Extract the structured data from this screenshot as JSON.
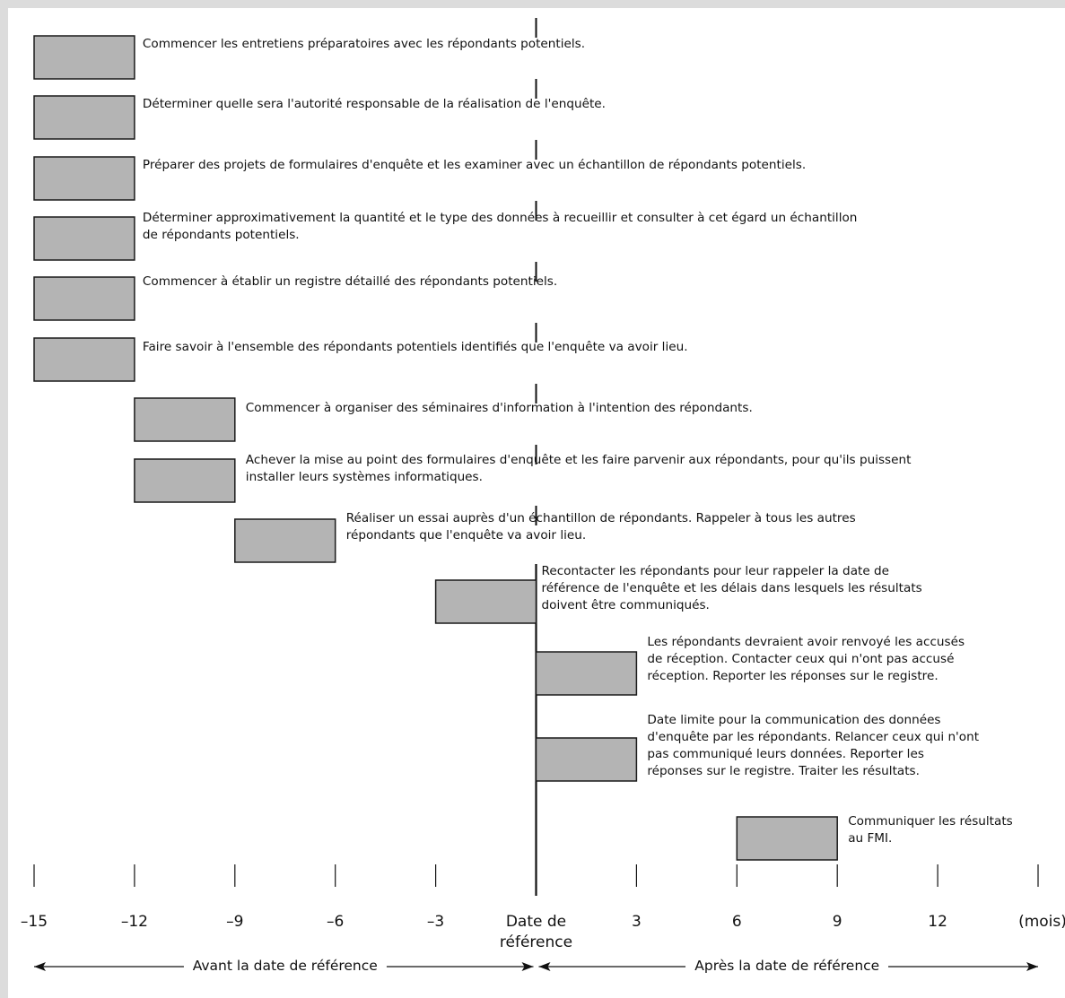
{
  "chart_data": {
    "type": "gantt",
    "x_unit_label": "(mois)",
    "x_range": [
      -15,
      15
    ],
    "reference_tick_label": "Date de\nréférence",
    "x_ticks": [
      {
        "value": -15,
        "label": "–15"
      },
      {
        "value": -12,
        "label": "–12"
      },
      {
        "value": -9,
        "label": "–9"
      },
      {
        "value": -6,
        "label": "–6"
      },
      {
        "value": -3,
        "label": "–3"
      },
      {
        "value": 0,
        "label": "Date de\nréférence"
      },
      {
        "value": 3,
        "label": "3"
      },
      {
        "value": 6,
        "label": "6"
      },
      {
        "value": 9,
        "label": "9"
      },
      {
        "value": 12,
        "label": "12"
      }
    ],
    "tasks": [
      {
        "start": -15,
        "end": -12,
        "label": "Commencer les entretiens préparatoires avec les répondants potentiels."
      },
      {
        "start": -15,
        "end": -12,
        "label": "Déterminer quelle sera l'autorité responsable de la réalisation de l'enquête."
      },
      {
        "start": -15,
        "end": -12,
        "label": "Préparer des projets de formulaires d'enquête et les examiner avec un échantillon de répondants potentiels."
      },
      {
        "start": -15,
        "end": -12,
        "label": "Déterminer approximativement la quantité et le type des données à recueillir et consulter à cet égard un échantillon\nde répondants potentiels."
      },
      {
        "start": -15,
        "end": -12,
        "label": "Commencer à établir un registre détaillé des répondants potentiels."
      },
      {
        "start": -15,
        "end": -12,
        "label": "Faire savoir à l'ensemble des répondants potentiels identifiés que l'enquête va avoir lieu."
      },
      {
        "start": -12,
        "end": -9,
        "label": "Commencer à organiser des séminaires d'information à l'intention des répondants."
      },
      {
        "start": -12,
        "end": -9,
        "label": "Achever la mise au point des formulaires d'enquête et les faire parvenir aux répondants, pour qu'ils puissent\ninstaller leurs systèmes informatiques."
      },
      {
        "start": -9,
        "end": -6,
        "label": "Réaliser un essai auprès d'un échantillon de répondants. Rappeler à tous les autres\nrépondants que l'enquête va avoir lieu."
      },
      {
        "start": -3,
        "end": 0,
        "label": "Recontacter les répondants pour leur rappeler la date de\nréférence de l'enquête et les délais dans lesquels les résultats\ndoivent être communiqués."
      },
      {
        "start": 0,
        "end": 3,
        "label": "Les répondants devraient avoir renvoyé les accusés\nde réception. Contacter ceux qui n'ont pas accusé\nréception. Reporter les réponses sur le registre."
      },
      {
        "start": 0,
        "end": 3,
        "label": "Date limite pour la communication des données\nd'enquête par les répondants. Relancer ceux qui n'ont\npas communiqué leurs données. Reporter les\nréponses sur le registre. Traiter les résultats."
      },
      {
        "start": 6,
        "end": 9,
        "label": "Communiquer les résultats\nau FMI."
      }
    ],
    "periods": [
      {
        "label": "Avant la date de référence",
        "from": -15,
        "to": 0
      },
      {
        "label": "Après la date de référence",
        "from": 0,
        "to": 15
      }
    ]
  },
  "colors": {
    "bar_fill": "#b4b4b4",
    "bar_stroke": "#1a1a1a",
    "line": "#111111",
    "outer_background": "#dcdcdc",
    "page_background": "#ffffff"
  }
}
